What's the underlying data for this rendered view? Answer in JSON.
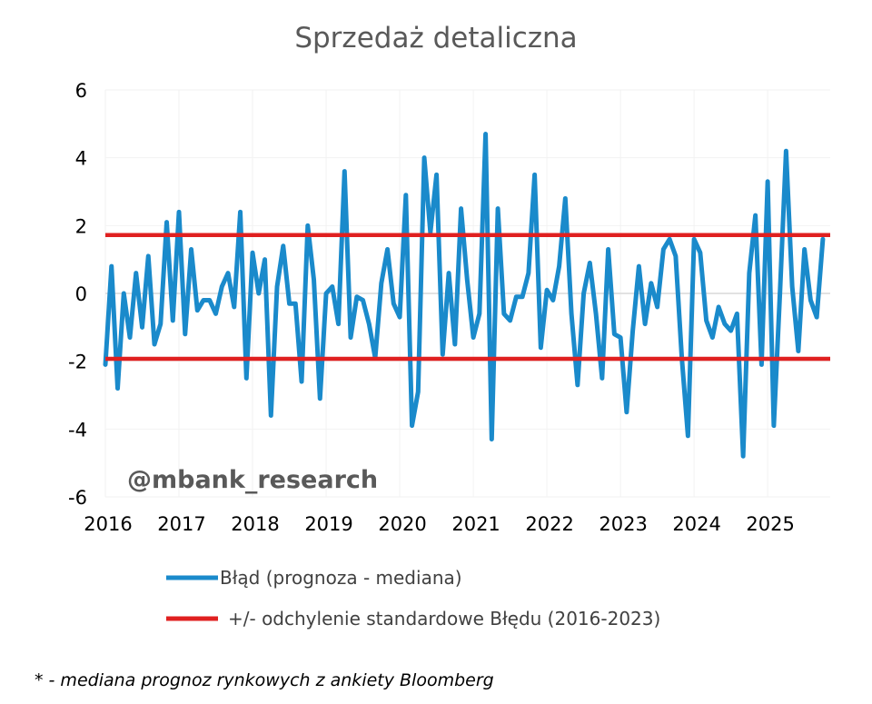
{
  "chart_data": {
    "type": "line",
    "title": "Sprzedaż detaliczna",
    "xlabel": "",
    "ylabel": "",
    "x_ticks": [
      "2016",
      "2017",
      "2018",
      "2019",
      "2020",
      "2021",
      "2022",
      "2023",
      "2024",
      "2025"
    ],
    "y_ticks": [
      "6",
      "4",
      "2",
      "0",
      "-2",
      "-4",
      "-6"
    ],
    "ylim": [
      -6,
      6
    ],
    "xlim": [
      2016.0,
      2025.85
    ],
    "grid": true,
    "legend_position": "bottom",
    "series": [
      {
        "name": "Błąd (prognoza - mediana)",
        "color": "#1a8acb",
        "start": "2016-01",
        "frequency": "monthly",
        "values": [
          -2.1,
          0.8,
          -2.8,
          0.0,
          -1.3,
          0.6,
          -1.0,
          1.1,
          -1.5,
          -0.9,
          2.1,
          -0.8,
          2.4,
          -1.2,
          1.3,
          -0.5,
          -0.2,
          -0.2,
          -0.6,
          0.2,
          0.6,
          -0.4,
          2.4,
          -2.5,
          1.2,
          0.0,
          1.0,
          -3.6,
          0.2,
          1.4,
          -0.3,
          -0.3,
          -2.6,
          2.0,
          0.4,
          -3.1,
          0.0,
          0.2,
          -0.9,
          3.6,
          -1.3,
          -0.1,
          -0.2,
          -0.9,
          -1.9,
          0.3,
          1.3,
          -0.3,
          -0.7,
          2.9,
          -3.9,
          -2.9,
          4.0,
          1.8,
          3.5,
          -1.8,
          0.6,
          -1.5,
          2.5,
          0.4,
          -1.3,
          -0.6,
          4.7,
          -4.3,
          2.5,
          -0.6,
          -0.8,
          -0.1,
          -0.1,
          0.6,
          3.5,
          -1.6,
          0.1,
          -0.2,
          0.8,
          2.8,
          -0.6,
          -2.7,
          0.0,
          0.9,
          -0.6,
          -2.5,
          1.3,
          -1.2,
          -1.3,
          -3.5,
          -1.1,
          0.8,
          -0.9,
          0.3,
          -0.4,
          1.3,
          1.6,
          1.1,
          -1.9,
          -4.2,
          1.6,
          1.2,
          -0.8,
          -1.3,
          -0.4,
          -0.9,
          -1.1,
          -0.6,
          -4.8,
          0.6,
          2.3,
          -2.1,
          3.3,
          -3.9,
          0.0,
          4.2,
          0.2,
          -1.7,
          1.3,
          -0.2,
          -0.7,
          1.6
        ]
      },
      {
        "name": "+/- odchylenie standardowe Błędu (2016-2023)",
        "color": "#e02020",
        "upper": 1.72,
        "lower": -1.93
      }
    ]
  },
  "watermark": "@mbank_research",
  "footnote": "* - mediana prognoz rynkowych z ankiety Bloomberg"
}
